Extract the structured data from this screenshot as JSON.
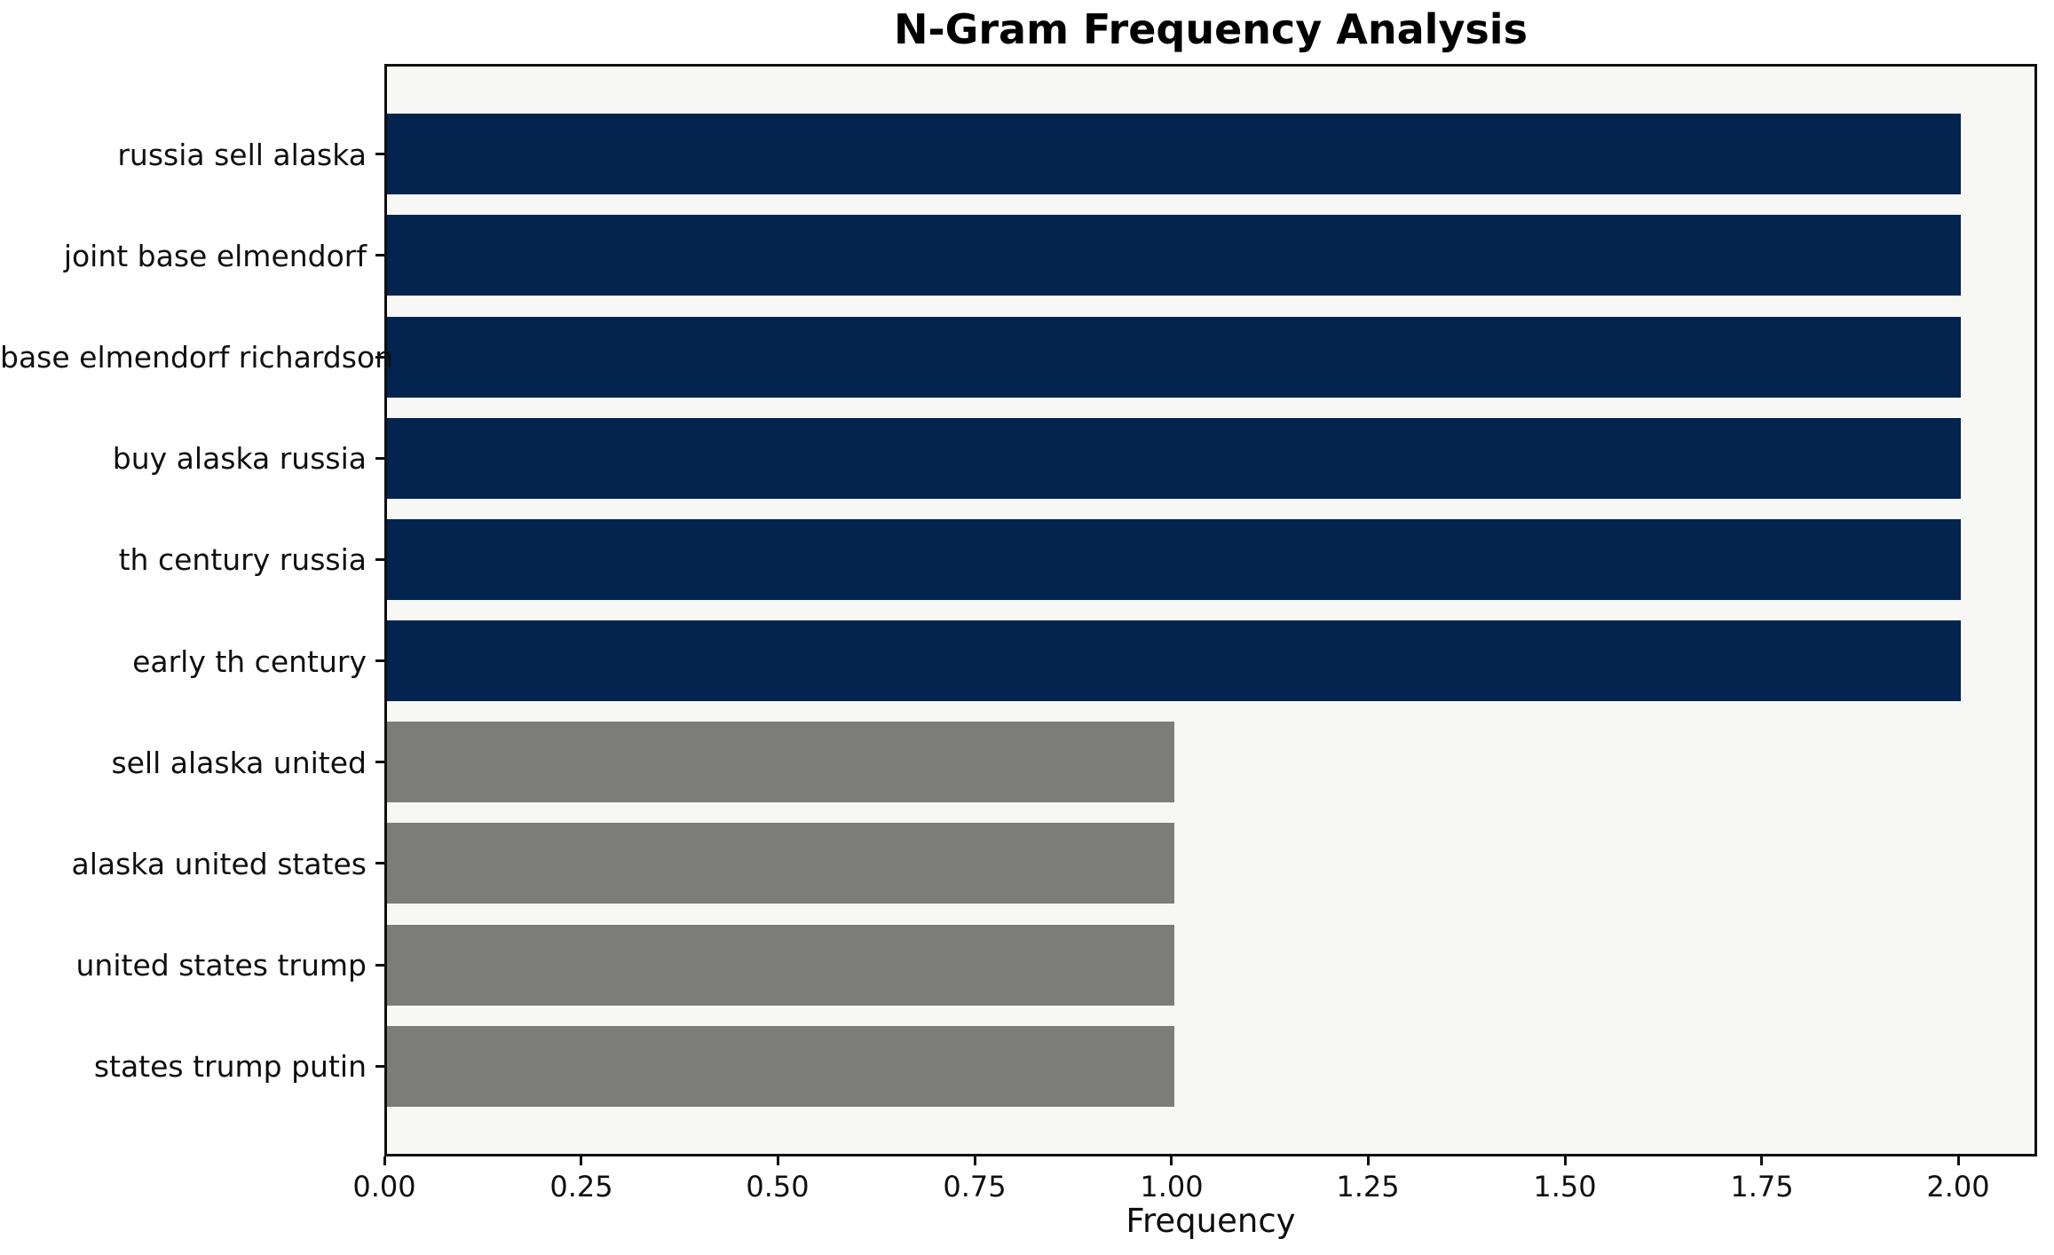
{
  "title": "N-Gram Frequency Analysis",
  "chart_data": {
    "type": "bar",
    "orientation": "horizontal",
    "title": "N-Gram Frequency Analysis",
    "xlabel": "Frequency",
    "ylabel": "",
    "categories": [
      "russia sell alaska",
      "joint base elmendorf",
      "base elmendorf richardson",
      "buy alaska russia",
      "th century russia",
      "early th century",
      "sell alaska united",
      "alaska united states",
      "united states trump",
      "states trump putin"
    ],
    "values": [
      2,
      2,
      2,
      2,
      2,
      2,
      1,
      1,
      1,
      1
    ],
    "bar_colors": [
      "#03244e",
      "#03244e",
      "#03244e",
      "#03244e",
      "#03244e",
      "#03244e",
      "#7c7c79",
      "#7c7c79",
      "#7c7c79",
      "#7c7c79"
    ],
    "xlim": [
      0,
      2.1
    ],
    "x_tick_values": [
      0,
      0.25,
      0.5,
      0.75,
      1.0,
      1.25,
      1.5,
      1.75,
      2.0
    ],
    "x_tick_labels": [
      "0.00",
      "0.25",
      "0.50",
      "0.75",
      "1.00",
      "1.25",
      "1.50",
      "1.75",
      "2.00"
    ],
    "grid": false,
    "legend": null,
    "colors": {
      "navy_bar": "#03244e",
      "gray_bar": "#7c7c79",
      "plot_background": "#f7f7f6",
      "page_background": "#ffffff",
      "axis_and_text": "#0f0f0f"
    }
  }
}
